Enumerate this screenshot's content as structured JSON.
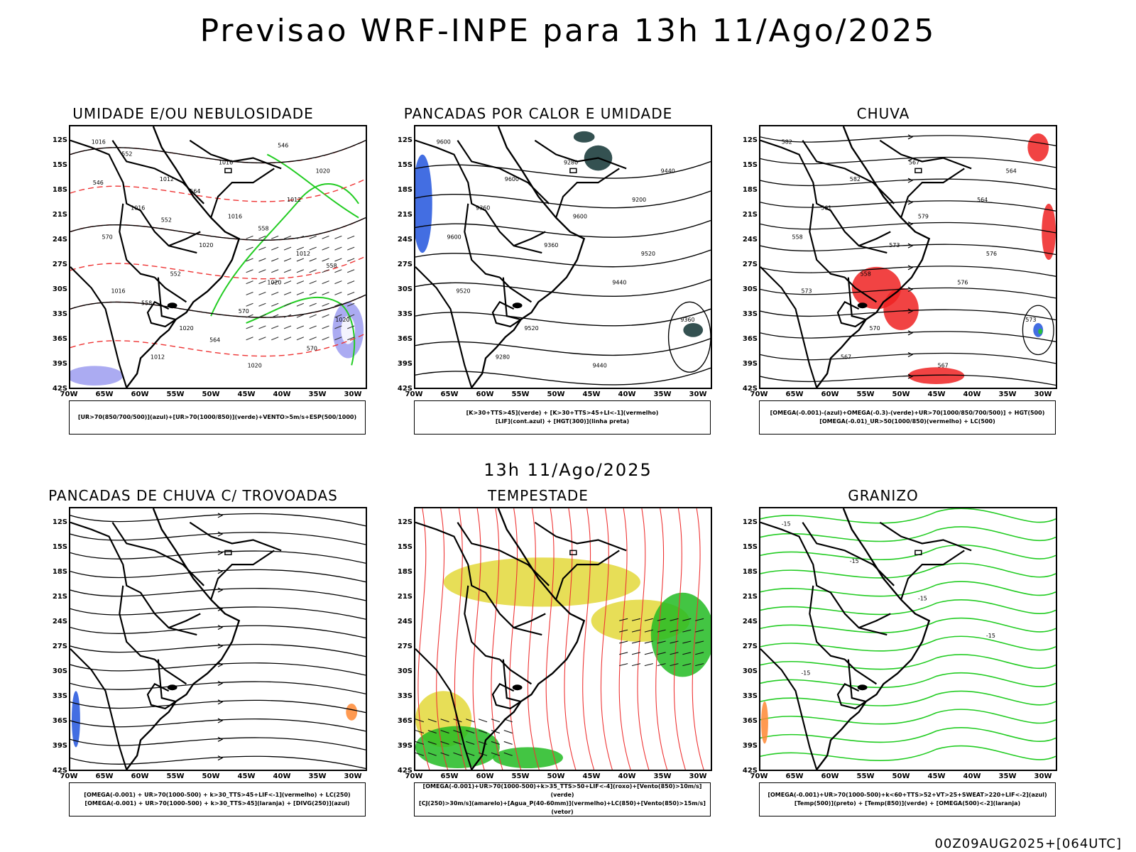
{
  "title": "Previsao WRF-INPE  para 13h 11/Ago/2025",
  "mid_title": "13h 11/Ago/2025",
  "footer": "00Z09AUG2025+[064UTC]",
  "lat_labels": [
    "12S",
    "15S",
    "18S",
    "21S",
    "24S",
    "27S",
    "30S",
    "33S",
    "36S",
    "39S",
    "42S"
  ],
  "lon_labels": [
    "70W",
    "65W",
    "60W",
    "55W",
    "50W",
    "45W",
    "40W",
    "35W",
    "30W"
  ],
  "panels": [
    {
      "title": "UMIDADE E/OU NEBULOSIDADE",
      "legend": [
        "[UR>70(850/700/500)](azul)+[UR>70(1000/850)](verde)+VENTO>5m/s+ESP(500/1000)"
      ],
      "labels": [
        "1016",
        "1012",
        "1016",
        "1012",
        "1016",
        "1020",
        "1020",
        "1020",
        "1016",
        "1020",
        "1020",
        "1020",
        "1012",
        "1016",
        "1012",
        "570",
        "552",
        "570",
        "570",
        "552",
        "564",
        "558",
        "558",
        "558",
        "564",
        "546",
        "546",
        "552"
      ]
    },
    {
      "title": "PANCADAS POR CALOR E UMIDADE",
      "legend": [
        "[K>30+TTS>45](verde) + [K>30+TTS>45+LI<-1](vermelho)",
        "[LIF](cont.azul) + [HGT(300)](linha preta)"
      ],
      "labels": [
        "9600",
        "9600",
        "9600",
        "9520",
        "9520",
        "9520",
        "9440",
        "9440",
        "9360",
        "9360",
        "9440",
        "9360",
        "9280",
        "9280",
        "9200",
        "9600"
      ]
    },
    {
      "title": "CHUVA",
      "legend": [
        "[OMEGA(-0.001)-(azul)+OMEGA(-0.3)-(verde)+UR>70(1000/850/700/500)] + HGT(500)",
        "[OMEGA(-0.01)_UR>50(1000/850)(vermelho) + LC(500)"
      ],
      "labels": [
        "582",
        "582",
        "579",
        "576",
        "573",
        "570",
        "567",
        "564",
        "561",
        "573",
        "576",
        "573",
        "567",
        "567",
        "564",
        "558",
        "558"
      ]
    },
    {
      "title": "PANCADAS DE CHUVA C/ TROVOADAS",
      "legend": [
        "[OMEGA(-0.001) + UR>70(1000-500) + k>30_TTS>45+LIF<-1](vermelho) + LC(250)",
        "[OMEGA(-0.001) + UR>70(1000-500) + k>30_TTS>45](laranja) + [DIVG(250)](azul)"
      ],
      "labels": []
    },
    {
      "title": "TEMPESTADE",
      "legend": [
        "[OMEGA(-0.001)+UR>70(1000-500)+k>35_TTS>50+LIF<-4](roxo)+[Vento(850)>10m/s](verde)",
        "[CJ(250)>30m/s](amarelo)+[Agua_P(40-60mm)](vermelho)+LC(850)+[Vento(850)>15m/s](vetor)"
      ],
      "labels": []
    },
    {
      "title": "GRANIZO",
      "legend": [
        "[OMEGA(-0.001)+UR>70(1000-500)+k<60+TTS>52+VT>25+SWEAT>220+LIF<-2](azul)",
        "[Temp(500)](preto) + [Temp(850)](verde) + [OMEGA(500)<-2](laranja)"
      ],
      "labels": [
        "-15",
        "-15",
        "-15",
        "-15",
        "-15"
      ]
    }
  ]
}
